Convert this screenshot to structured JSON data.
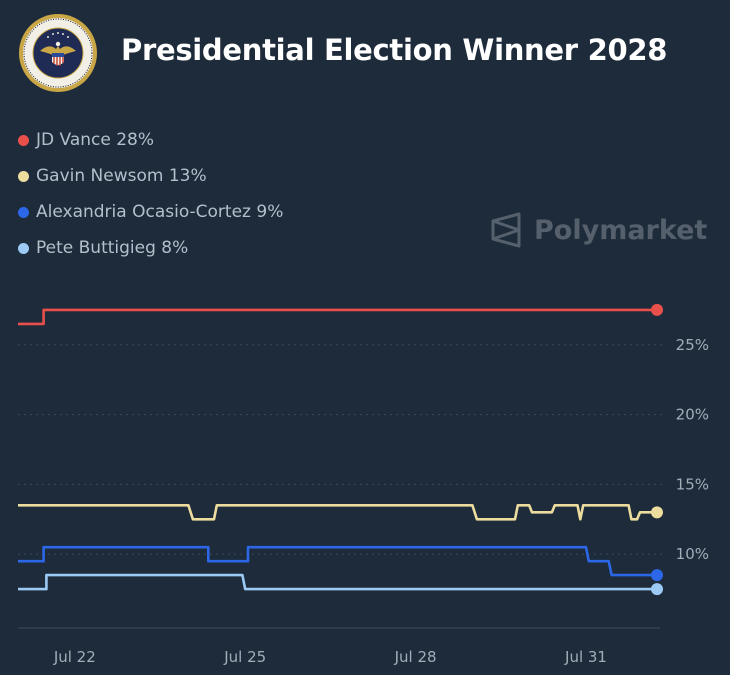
{
  "header": {
    "title": "Presidential Election Winner 2028"
  },
  "legend": [
    {
      "label": "JD Vance 28%",
      "color": "#e9504c"
    },
    {
      "label": "Gavin Newsom 13%",
      "color": "#ecdc9e"
    },
    {
      "label": "Alexandria Ocasio-Cortez 9%",
      "color": "#2c67e8"
    },
    {
      "label": "Pete Buttigieg 8%",
      "color": "#9ccaf5"
    }
  ],
  "watermark": {
    "text": "Polymarket"
  },
  "chart_data": {
    "type": "line",
    "step": true,
    "x_range": [
      21.0,
      32.25
    ],
    "ylim": [
      5,
      30
    ],
    "x_ticks": [
      {
        "label": "Jul 22",
        "x": 22
      },
      {
        "label": "Jul 25",
        "x": 25
      },
      {
        "label": "Jul 28",
        "x": 28
      },
      {
        "label": "Jul 31",
        "x": 31
      }
    ],
    "y_ticks": [
      {
        "label": "25%",
        "y": 25
      },
      {
        "label": "20%",
        "y": 20
      },
      {
        "label": "15%",
        "y": 15
      },
      {
        "label": "10%",
        "y": 10
      }
    ],
    "grid": "horizontal dotted",
    "y_axis_side": "right",
    "series": [
      {
        "name": "JD Vance",
        "color": "#e9504c",
        "points": [
          [
            21.0,
            26.5
          ],
          [
            21.45,
            26.5
          ],
          [
            21.45,
            27.5
          ],
          [
            32.25,
            27.5
          ]
        ]
      },
      {
        "name": "Gavin Newsom",
        "color": "#ecdc9e",
        "points": [
          [
            21.0,
            13.5
          ],
          [
            24.0,
            13.5
          ],
          [
            24.08,
            12.5
          ],
          [
            24.45,
            12.5
          ],
          [
            24.5,
            13.5
          ],
          [
            29.0,
            13.5
          ],
          [
            29.08,
            12.5
          ],
          [
            29.75,
            12.5
          ],
          [
            29.8,
            13.5
          ],
          [
            30.0,
            13.5
          ],
          [
            30.05,
            13.0
          ],
          [
            30.4,
            13.0
          ],
          [
            30.45,
            13.5
          ],
          [
            30.85,
            13.5
          ],
          [
            30.9,
            12.5
          ],
          [
            30.95,
            13.5
          ],
          [
            31.75,
            13.5
          ],
          [
            31.8,
            12.5
          ],
          [
            31.9,
            12.5
          ],
          [
            31.95,
            13.0
          ],
          [
            32.25,
            13.0
          ]
        ]
      },
      {
        "name": "Alexandria Ocasio-Cortez",
        "color": "#2c67e8",
        "points": [
          [
            21.0,
            9.5
          ],
          [
            21.45,
            9.5
          ],
          [
            21.45,
            10.5
          ],
          [
            24.35,
            10.5
          ],
          [
            24.35,
            9.5
          ],
          [
            25.05,
            9.5
          ],
          [
            25.05,
            10.5
          ],
          [
            31.0,
            10.5
          ],
          [
            31.05,
            9.5
          ],
          [
            31.4,
            9.5
          ],
          [
            31.45,
            8.5
          ],
          [
            32.25,
            8.5
          ]
        ]
      },
      {
        "name": "Pete Buttigieg",
        "color": "#9ccaf5",
        "points": [
          [
            21.0,
            7.5
          ],
          [
            21.5,
            7.5
          ],
          [
            21.5,
            8.5
          ],
          [
            24.95,
            8.5
          ],
          [
            25.0,
            7.5
          ],
          [
            32.25,
            7.5
          ]
        ]
      }
    ]
  }
}
